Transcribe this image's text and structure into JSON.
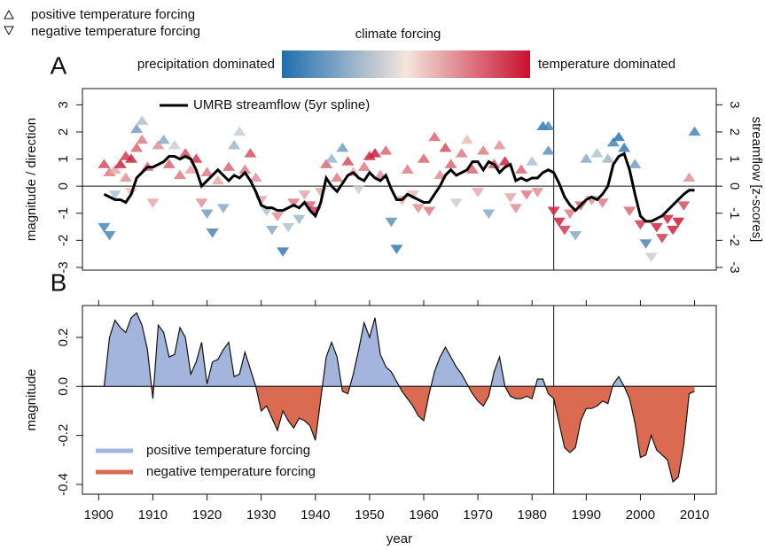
{
  "legend_top": {
    "up": "positive temperature forcing",
    "down": "negative temperature forcing"
  },
  "colorbar": {
    "title": "climate forcing",
    "low_label": "precipitation dominated",
    "high_label": "temperature dominated",
    "colors": [
      "#1f6eb0",
      "#f3e6dc",
      "#c8102e"
    ]
  },
  "chart_data": [
    {
      "type": "scatter",
      "panel_label": "A",
      "y_label": "magnitude / direction",
      "y2_label": "streamflow [z-scores]",
      "xlim": [
        1897,
        2014
      ],
      "ylim": [
        -3.1,
        3.6
      ],
      "yticks": [
        -3,
        -2,
        -1,
        0,
        1,
        2,
        3
      ],
      "y2lim": [
        -3.1,
        3.6
      ],
      "y2ticks": [
        -3,
        -2,
        -1,
        0,
        1,
        2,
        3
      ],
      "reference_year": 1984,
      "points": {
        "x": [
          1901,
          1901,
          1902,
          1902,
          1903,
          1903,
          1904,
          1905,
          1905,
          1906,
          1906,
          1907,
          1907,
          1908,
          1908,
          1909,
          1910,
          1911,
          1912,
          1913,
          1914,
          1915,
          1916,
          1917,
          1918,
          1919,
          1920,
          1920,
          1921,
          1922,
          1923,
          1924,
          1925,
          1926,
          1927,
          1928,
          1929,
          1930,
          1931,
          1932,
          1933,
          1934,
          1935,
          1936,
          1937,
          1938,
          1939,
          1940,
          1941,
          1942,
          1943,
          1944,
          1945,
          1946,
          1947,
          1948,
          1949,
          1950,
          1951,
          1952,
          1953,
          1954,
          1955,
          1956,
          1957,
          1958,
          1959,
          1960,
          1961,
          1962,
          1963,
          1964,
          1965,
          1966,
          1967,
          1968,
          1969,
          1970,
          1971,
          1972,
          1973,
          1974,
          1975,
          1976,
          1977,
          1978,
          1979,
          1980,
          1981,
          1982,
          1983,
          1983,
          1984,
          1985,
          1986,
          1987,
          1988,
          1989,
          1990,
          1991,
          1992,
          1993,
          1994,
          1995,
          1996,
          1997,
          1998,
          1999,
          2000,
          2001,
          2002,
          2003,
          2004,
          2005,
          2006,
          2007,
          2008,
          2009,
          2010
        ],
        "y": [
          -1.5,
          0.8,
          -1.8,
          0.5,
          0.6,
          -0.3,
          0.8,
          0.3,
          1.1,
          1.0,
          -0.2,
          2.1,
          1.4,
          2.4,
          1.7,
          0.7,
          -0.6,
          1.5,
          1.7,
          0.8,
          1.5,
          0.4,
          1.2,
          0.6,
          1.0,
          -0.6,
          -1.0,
          0.5,
          -1.7,
          0.2,
          -0.8,
          0.7,
          1.5,
          2.0,
          0.6,
          1.2,
          0.3,
          -0.5,
          -0.9,
          -1.6,
          -1.1,
          -2.4,
          -1.5,
          -0.6,
          -1.2,
          -0.3,
          -0.7,
          -0.9,
          -0.2,
          0.8,
          1.0,
          0.3,
          1.4,
          0.9,
          0.5,
          -0.1,
          0.7,
          1.1,
          1.2,
          0.4,
          1.3,
          -1.3,
          -2.3,
          -0.5,
          0.6,
          -0.3,
          -0.8,
          1.0,
          -0.9,
          1.8,
          0.4,
          1.4,
          0.8,
          -0.6,
          1.2,
          1.7,
          0.6,
          -0.2,
          1.3,
          -1.0,
          0.8,
          1.5,
          0.9,
          -0.4,
          -0.8,
          0.6,
          -0.3,
          0.9,
          -0.2,
          2.2,
          1.3,
          2.2,
          -0.9,
          -1.3,
          -1.6,
          -1.0,
          -1.8,
          -0.7,
          1.0,
          -0.5,
          1.2,
          -0.6,
          1.0,
          1.6,
          1.8,
          1.4,
          -0.9,
          0.8,
          -1.4,
          -2.1,
          -2.6,
          -1.5,
          -1.9,
          -1.2,
          -1.6,
          -1.3,
          -0.7,
          0.3,
          2.0
        ],
        "forcing": [
          -0.8,
          0.7,
          -0.8,
          0.5,
          0.3,
          -0.3,
          0.9,
          0.4,
          0.8,
          0.9,
          0.2,
          -0.6,
          0.6,
          -0.3,
          0.5,
          0.6,
          0.3,
          0.4,
          -0.5,
          0.6,
          -0.2,
          0.5,
          0.7,
          0.3,
          0.8,
          0.4,
          -0.6,
          0.5,
          -0.8,
          0.3,
          -0.5,
          0.6,
          -0.4,
          -0.2,
          0.5,
          0.7,
          0.4,
          0.3,
          -0.3,
          -0.5,
          0.4,
          -0.9,
          -0.3,
          0.5,
          -0.4,
          0.3,
          0.6,
          0.8,
          0.3,
          0.6,
          -0.4,
          0.5,
          -0.6,
          0.7,
          0.3,
          -0.2,
          0.5,
          0.9,
          0.95,
          0.4,
          0.6,
          -0.7,
          -0.9,
          0.3,
          0.5,
          0.2,
          0.4,
          0.6,
          0.5,
          0.6,
          0.4,
          0.7,
          0.6,
          -0.2,
          0.5,
          0.2,
          0.6,
          0.3,
          0.5,
          -0.5,
          0.7,
          0.4,
          0.9,
          0.3,
          0.4,
          0.6,
          0.5,
          -0.3,
          0.4,
          -0.9,
          -0.7,
          -0.8,
          0.9,
          0.9,
          0.8,
          0.5,
          -0.5,
          0.6,
          -0.5,
          0.4,
          -0.3,
          0.5,
          -0.4,
          -0.8,
          -0.95,
          -0.9,
          0.6,
          -0.6,
          0.8,
          -0.8,
          -0.2,
          0.9,
          0.8,
          0.9,
          0.9,
          0.95,
          0.7,
          0.4,
          -0.8
        ]
      },
      "series": [
        {
          "name": "UMRB streamflow (5yr spline)",
          "color": "#000000",
          "axis": "y2",
          "x": [
            1901,
            1902,
            1903,
            1904,
            1905,
            1906,
            1907,
            1908,
            1909,
            1910,
            1911,
            1912,
            1913,
            1914,
            1915,
            1916,
            1917,
            1918,
            1919,
            1920,
            1921,
            1922,
            1923,
            1924,
            1925,
            1926,
            1927,
            1928,
            1929,
            1930,
            1931,
            1932,
            1933,
            1934,
            1935,
            1936,
            1937,
            1938,
            1939,
            1940,
            1941,
            1942,
            1943,
            1944,
            1945,
            1946,
            1947,
            1948,
            1949,
            1950,
            1951,
            1952,
            1953,
            1954,
            1955,
            1956,
            1957,
            1958,
            1959,
            1960,
            1961,
            1962,
            1963,
            1964,
            1965,
            1966,
            1967,
            1968,
            1969,
            1970,
            1971,
            1972,
            1973,
            1974,
            1975,
            1976,
            1977,
            1978,
            1979,
            1980,
            1981,
            1982,
            1983,
            1984,
            1985,
            1986,
            1987,
            1988,
            1989,
            1990,
            1991,
            1992,
            1993,
            1994,
            1995,
            1996,
            1997,
            1998,
            1999,
            2000,
            2001,
            2002,
            2003,
            2004,
            2005,
            2006,
            2007,
            2008,
            2009,
            2010
          ],
          "values": [
            -0.3,
            -0.4,
            -0.5,
            -0.5,
            -0.6,
            -0.3,
            0.3,
            0.5,
            0.7,
            0.7,
            0.8,
            0.9,
            1.1,
            1.1,
            1.0,
            1.1,
            1.0,
            0.6,
            0.0,
            0.2,
            0.4,
            0.6,
            0.4,
            0.2,
            0.4,
            0.3,
            0.5,
            0.2,
            -0.2,
            -0.7,
            -0.8,
            -0.8,
            -0.9,
            -0.9,
            -0.8,
            -0.7,
            -0.8,
            -0.6,
            -0.9,
            -1.1,
            -0.6,
            0.3,
            0.0,
            -0.2,
            0.1,
            0.4,
            0.5,
            0.3,
            0.2,
            0.5,
            0.3,
            0.2,
            0.4,
            -0.1,
            -0.5,
            -0.5,
            -0.3,
            -0.4,
            -0.5,
            -0.6,
            -0.6,
            -0.3,
            0.0,
            0.4,
            0.6,
            0.4,
            0.5,
            0.6,
            0.9,
            0.9,
            0.6,
            0.9,
            0.8,
            0.5,
            0.7,
            0.8,
            0.2,
            0.3,
            0.2,
            0.3,
            0.3,
            0.5,
            0.6,
            0.5,
            0.1,
            -0.4,
            -0.7,
            -0.9,
            -0.7,
            -0.5,
            -0.4,
            -0.5,
            -0.3,
            0.0,
            0.8,
            1.1,
            1.2,
            0.6,
            -0.3,
            -1.1,
            -1.3,
            -1.3,
            -1.2,
            -1.1,
            -0.9,
            -0.7,
            -0.5,
            -0.3,
            -0.15,
            -0.15
          ]
        }
      ]
    },
    {
      "type": "area",
      "panel_label": "B",
      "y_label": "magnitude",
      "x_label": "year",
      "xlim": [
        1897,
        2014
      ],
      "xticks": [
        1900,
        1910,
        1920,
        1930,
        1940,
        1950,
        1960,
        1970,
        1980,
        1990,
        2000,
        2010
      ],
      "ylim": [
        -0.44,
        0.33
      ],
      "yticks": [
        {
          "value": -0.4,
          "label": "-0.4"
        },
        {
          "value": -0.2,
          "label": "-0.2"
        },
        {
          "value": 0,
          "label": "0.0"
        },
        0.2
      ],
      "reference_year": 1984,
      "series": [
        {
          "name": "positive temperature forcing",
          "color": "#a3b5dc"
        },
        {
          "name": "negative temperature forcing",
          "color": "#da6a50"
        }
      ],
      "x": [
        1901,
        1902,
        1903,
        1904,
        1905,
        1906,
        1907,
        1908,
        1909,
        1910,
        1911,
        1912,
        1913,
        1914,
        1915,
        1916,
        1917,
        1918,
        1919,
        1920,
        1921,
        1922,
        1923,
        1924,
        1925,
        1926,
        1927,
        1928,
        1929,
        1930,
        1931,
        1932,
        1933,
        1934,
        1935,
        1936,
        1937,
        1938,
        1939,
        1940,
        1941,
        1942,
        1943,
        1944,
        1945,
        1946,
        1947,
        1948,
        1949,
        1950,
        1951,
        1952,
        1953,
        1954,
        1955,
        1956,
        1957,
        1958,
        1959,
        1960,
        1961,
        1962,
        1963,
        1964,
        1965,
        1966,
        1967,
        1968,
        1969,
        1970,
        1971,
        1972,
        1973,
        1974,
        1975,
        1976,
        1977,
        1978,
        1979,
        1980,
        1981,
        1982,
        1983,
        1984,
        1985,
        1986,
        1987,
        1988,
        1989,
        1990,
        1991,
        1992,
        1993,
        1994,
        1995,
        1996,
        1997,
        1998,
        1999,
        2000,
        2001,
        2002,
        2003,
        2004,
        2005,
        2006,
        2007,
        2008,
        2009,
        2010
      ],
      "values": [
        0.0,
        0.2,
        0.27,
        0.24,
        0.22,
        0.28,
        0.3,
        0.25,
        0.15,
        -0.05,
        0.25,
        0.22,
        0.12,
        0.13,
        0.24,
        0.2,
        0.05,
        0.1,
        0.18,
        0.01,
        0.1,
        0.11,
        0.15,
        0.18,
        0.04,
        0.05,
        0.14,
        0.07,
        0.0,
        -0.1,
        -0.08,
        -0.13,
        -0.18,
        -0.1,
        -0.14,
        -0.17,
        -0.13,
        -0.14,
        -0.16,
        -0.22,
        -0.05,
        0.12,
        0.18,
        0.12,
        -0.02,
        -0.03,
        0.05,
        0.15,
        0.26,
        0.2,
        0.28,
        0.13,
        0.08,
        0.06,
        0.02,
        -0.02,
        -0.05,
        -0.08,
        -0.12,
        -0.14,
        -0.03,
        0.06,
        0.12,
        0.16,
        0.12,
        0.08,
        0.05,
        0.01,
        -0.03,
        -0.06,
        -0.08,
        -0.04,
        0.06,
        0.12,
        0.0,
        -0.04,
        -0.05,
        -0.05,
        -0.04,
        -0.05,
        0.03,
        0.03,
        -0.03,
        -0.05,
        -0.15,
        -0.25,
        -0.27,
        -0.25,
        -0.14,
        -0.09,
        -0.09,
        -0.08,
        -0.06,
        -0.07,
        0.01,
        0.04,
        0.0,
        -0.05,
        -0.15,
        -0.29,
        -0.28,
        -0.2,
        -0.26,
        -0.28,
        -0.3,
        -0.39,
        -0.37,
        -0.24,
        -0.03,
        -0.02
      ]
    }
  ]
}
